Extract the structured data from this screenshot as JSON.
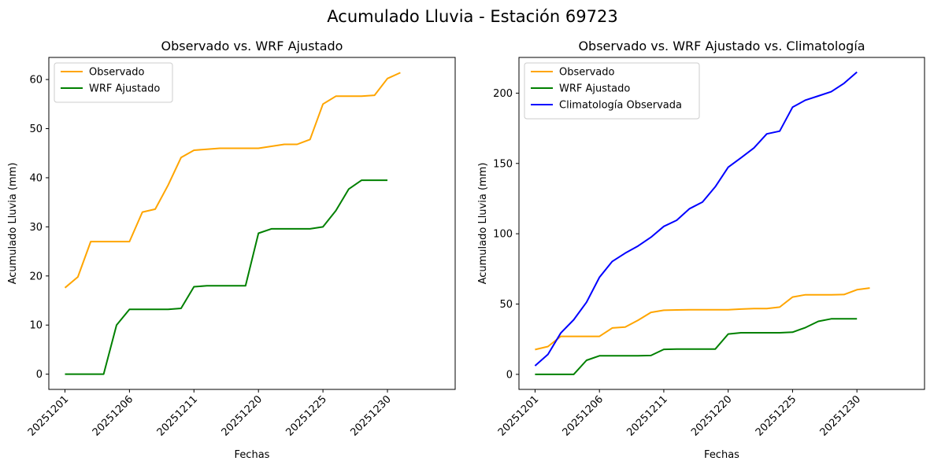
{
  "figure": {
    "suptitle": "Acumulado Lluvia - Estación 69723"
  },
  "chart_data": [
    {
      "type": "line",
      "title": "Observado vs. WRF Ajustado",
      "xlabel": "Fechas",
      "ylabel": "Acumulado Lluvia (mm)",
      "x": [
        1,
        2,
        3,
        4,
        5,
        6,
        7,
        8,
        9,
        10,
        11,
        12,
        13,
        14,
        15,
        16,
        17,
        18,
        19,
        20,
        21,
        22,
        23,
        24,
        25,
        26,
        27,
        28,
        29,
        30
      ],
      "xticks": [
        1,
        6,
        11,
        16,
        21,
        26
      ],
      "xtick_labels": [
        "20251201",
        "20251206",
        "20251211",
        "20251220",
        "20251225",
        "20251230"
      ],
      "xlim": [
        -0.25,
        31.25
      ],
      "ylim": [
        -3.1,
        64.5
      ],
      "yticks": [
        0,
        10,
        20,
        30,
        40,
        50,
        60
      ],
      "grid": false,
      "legend": "top-left",
      "series": [
        {
          "name": "Observado",
          "color": "#FFA500",
          "values": [
            17.6,
            19.8,
            27.0,
            27.0,
            27.0,
            27.0,
            33.0,
            33.6,
            38.5,
            44.1,
            45.6,
            45.8,
            46.0,
            46.0,
            46.0,
            46.0,
            46.4,
            46.8,
            46.8,
            47.8,
            55.0,
            56.6,
            56.6,
            56.6,
            56.8,
            60.2,
            61.4,
            null,
            null,
            null
          ]
        },
        {
          "name": "WRF Ajustado",
          "color": "#008000",
          "values": [
            0,
            0,
            0,
            0,
            10.0,
            13.2,
            13.2,
            13.2,
            13.2,
            13.4,
            17.8,
            18.0,
            18.0,
            18.0,
            18.0,
            28.7,
            29.6,
            29.6,
            29.6,
            29.6,
            30.0,
            33.3,
            37.7,
            39.5,
            39.5,
            39.5,
            null,
            null,
            null,
            null
          ]
        }
      ]
    },
    {
      "type": "line",
      "title": "Observado vs. WRF Ajustado vs. Climatología",
      "xlabel": "Fechas",
      "ylabel": "Acumulado Lluvia (mm)",
      "x": [
        1,
        2,
        3,
        4,
        5,
        6,
        7,
        8,
        9,
        10,
        11,
        12,
        13,
        14,
        15,
        16,
        17,
        18,
        19,
        20,
        21,
        22,
        23,
        24,
        25,
        26,
        27,
        28,
        29,
        30
      ],
      "xticks": [
        1,
        6,
        11,
        16,
        21,
        26
      ],
      "xtick_labels": [
        "20251201",
        "20251206",
        "20251211",
        "20251220",
        "20251225",
        "20251230"
      ],
      "xlim": [
        -0.25,
        31.25
      ],
      "ylim": [
        -10.7,
        225.4
      ],
      "yticks": [
        0,
        50,
        100,
        150,
        200
      ],
      "grid": false,
      "legend": "top-left",
      "series": [
        {
          "name": "Observado",
          "color": "#FFA500",
          "values": [
            17.6,
            19.8,
            27.0,
            27.0,
            27.0,
            27.0,
            33.0,
            33.6,
            38.5,
            44.1,
            45.6,
            45.8,
            46.0,
            46.0,
            46.0,
            46.0,
            46.4,
            46.8,
            46.8,
            47.8,
            55.0,
            56.6,
            56.6,
            56.6,
            56.8,
            60.2,
            61.4,
            null,
            null,
            null
          ]
        },
        {
          "name": "WRF Ajustado",
          "color": "#008000",
          "values": [
            0,
            0,
            0,
            0,
            10.0,
            13.2,
            13.2,
            13.2,
            13.2,
            13.4,
            17.8,
            18.0,
            18.0,
            18.0,
            18.0,
            28.7,
            29.6,
            29.6,
            29.6,
            29.6,
            30.0,
            33.3,
            37.7,
            39.5,
            39.5,
            39.5,
            null,
            null,
            null,
            null
          ]
        },
        {
          "name": "Climatología Observada",
          "color": "#0000FF",
          "values": [
            6.1,
            14.2,
            29.4,
            38.8,
            51.3,
            69.0,
            80.3,
            86.2,
            91.3,
            97.5,
            105.2,
            109.6,
            117.8,
            122.5,
            133.4,
            147.3,
            154.0,
            161.0,
            171.0,
            173.0,
            190.0,
            195.0,
            198.0,
            201.0,
            207.0,
            215.0,
            null,
            null,
            null,
            null
          ]
        }
      ]
    }
  ]
}
